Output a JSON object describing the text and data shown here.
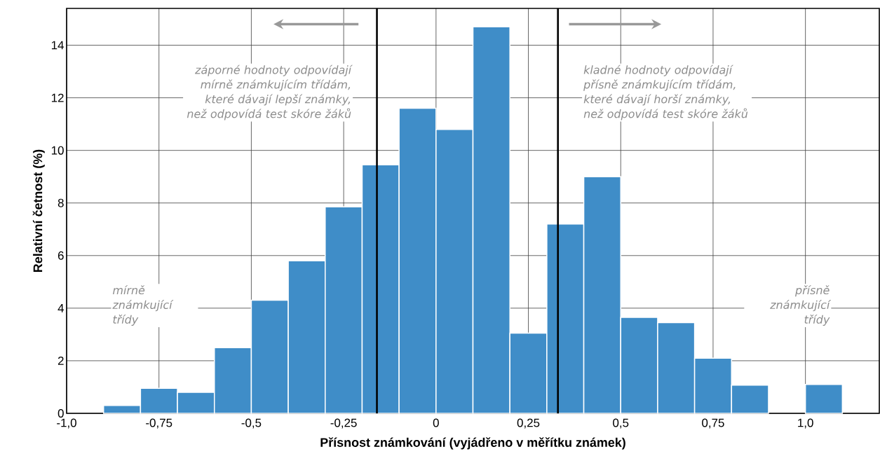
{
  "chart_data": {
    "type": "histogram",
    "xlabel": "Přísnost známkování (vyjádřeno v měřítku známek)",
    "ylabel": "Relativní četnost (%)",
    "bins": [
      -0.9,
      -0.8,
      -0.7,
      -0.6,
      -0.5,
      -0.4,
      -0.3,
      -0.2,
      -0.1,
      0,
      0.1,
      0.2,
      0.3,
      0.4,
      0.5,
      0.6,
      0.7,
      0.8,
      0.9,
      1.0,
      1.1
    ],
    "values": [
      0.3,
      0.95,
      0.8,
      2.5,
      4.3,
      5.8,
      7.85,
      9.45,
      11.6,
      10.8,
      14.7,
      3.05,
      7.2,
      9.0,
      3.65,
      3.45,
      2.1,
      1.07,
      0,
      1.1
    ],
    "color": "#3f8dc8",
    "xlim": [
      -1.0,
      1.2
    ],
    "xticks": [
      {
        "value": -1.0,
        "label": "-1,0"
      },
      {
        "value": -0.75,
        "label": "-0,75"
      },
      {
        "value": -0.5,
        "label": "-0,5"
      },
      {
        "value": -0.25,
        "label": "-0,25"
      },
      0,
      {
        "value": 0.25,
        "label": "0,25"
      },
      {
        "value": 0.5,
        "label": "0,5"
      },
      {
        "value": 0.75,
        "label": "0,75"
      },
      {
        "value": 1.0,
        "label": "1,0"
      }
    ],
    "ylim": [
      0,
      15.4
    ],
    "yticks": [
      0,
      2,
      4,
      6,
      8,
      10,
      12,
      14
    ],
    "grid": true,
    "ref_lines": [
      {
        "axis": "x",
        "value": -0.16,
        "color": "#000000"
      },
      {
        "axis": "x",
        "value": 0.33,
        "color": "#000000"
      }
    ],
    "annotations": [
      "záporné hodnoty odpovídají mírně známkujícím třídám, které dávají lepší známky, než odpovídá test skóre žáků",
      "kladné hodnoty odpovídají přísně známkujícím třídám, které dávají horší známky, než odpovídá test skóre žáků",
      "mírně známkující třídy",
      "přísně známkující třídy"
    ]
  }
}
